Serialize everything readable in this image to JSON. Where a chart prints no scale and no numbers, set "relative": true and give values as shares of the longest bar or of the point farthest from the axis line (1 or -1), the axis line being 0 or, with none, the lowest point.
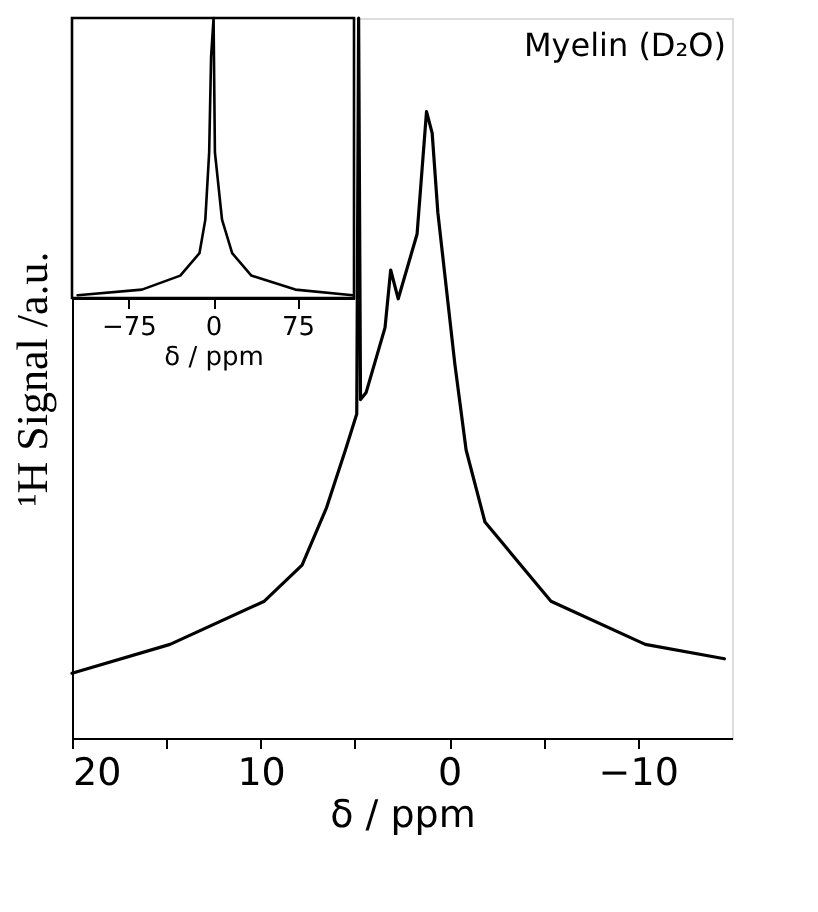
{
  "chart_data": [
    {
      "type": "line",
      "relative": true,
      "color": "#000000",
      "xlabel": "δ / ppm",
      "ylabel": "¹H Signal /a.u.",
      "annotations": [
        "Myelin (D₂O)"
      ],
      "tick_labels": "x",
      "xlim": [
        20,
        -15
      ],
      "xticks": [
        20,
        {
          "value": 15,
          "label": null
        },
        10,
        {
          "value": 5,
          "label": null
        },
        0,
        {
          "value": -5,
          "label": null
        },
        -10
      ],
      "x": [
        20,
        14.8,
        9.8,
        7.8,
        6.5,
        5.5,
        4.9,
        4.8,
        4.7,
        4.4,
        3.4,
        3.1,
        2.7,
        1.7,
        1.2,
        0.9,
        0.6,
        -0.3,
        -0.9,
        -1.9,
        -5.4,
        -10.4,
        -14.6
      ],
      "values": [
        0.09,
        0.13,
        0.19,
        0.24,
        0.32,
        0.4,
        0.45,
        1.0,
        0.47,
        0.48,
        0.57,
        0.65,
        0.61,
        0.7,
        0.87,
        0.84,
        0.73,
        0.52,
        0.4,
        0.3,
        0.19,
        0.13,
        0.11
      ]
    },
    {
      "type": "line",
      "relative": true,
      "color": "#000000",
      "xlabel": "δ / ppm",
      "tick_labels": "x",
      "xlim": [
        -125,
        125
      ],
      "xticks": [
        -75,
        0,
        75
      ],
      "x": [
        -120,
        -63,
        -29,
        -12,
        -6.8,
        -3.4,
        -1.7,
        0.5,
        1.7,
        8,
        17,
        34,
        73,
        124
      ],
      "values": [
        0.01,
        0.03,
        0.08,
        0.16,
        0.28,
        0.52,
        0.86,
        1.0,
        0.52,
        0.28,
        0.16,
        0.08,
        0.03,
        0.01
      ]
    }
  ]
}
